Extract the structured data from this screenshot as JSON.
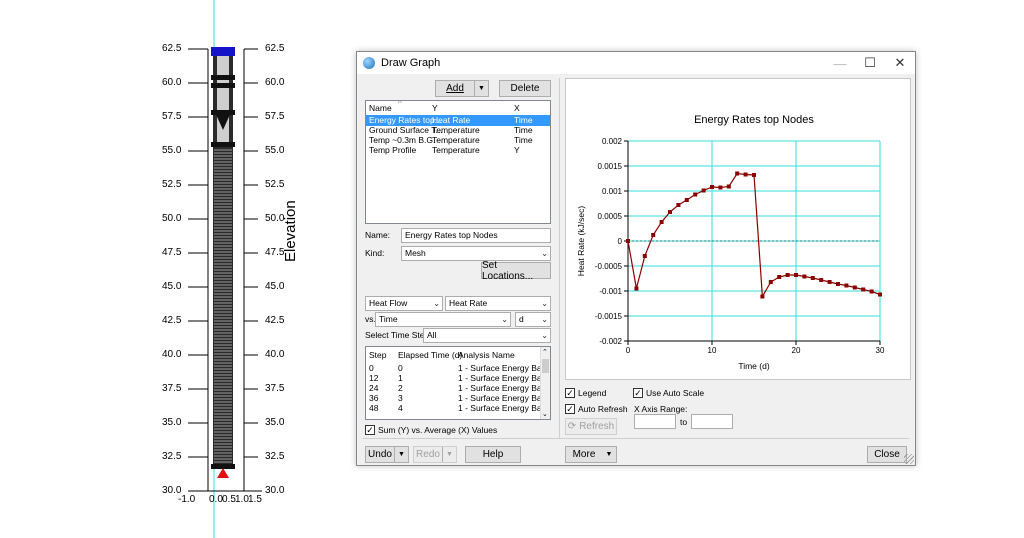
{
  "model_view": {
    "left_ticks": [
      "62.5",
      "60.0",
      "57.5",
      "55.0",
      "52.5",
      "50.0",
      "47.5",
      "45.0",
      "42.5",
      "40.0",
      "37.5",
      "35.0",
      "32.5",
      "30.0"
    ],
    "right_ticks": [
      "62.5",
      "60.0",
      "57.5",
      "55.0",
      "52.5",
      "50.0",
      "47.5",
      "45.0",
      "42.5",
      "40.0",
      "37.5",
      "35.0",
      "32.5",
      "30.0"
    ],
    "x_ticks": [
      "-1.0",
      "0.0",
      "0.5",
      "1.0",
      "1.5"
    ],
    "axis_title": "Elevation"
  },
  "dialog": {
    "title": "Draw Graph",
    "add_label": "Add",
    "delete_label": "Delete",
    "graph_list": {
      "headers": [
        "Name",
        "Y",
        "X"
      ],
      "rows": [
        [
          "Energy Rates top...",
          "Heat Rate",
          "Time"
        ],
        [
          "Ground Surface T...",
          "Temperature",
          "Time"
        ],
        [
          "Temp ~0.3m B.G.",
          "Temperature",
          "Time"
        ],
        [
          "Temp Profile",
          "Temperature",
          "Y"
        ]
      ]
    },
    "name_label": "Name:",
    "name_value": "Energy Rates top Nodes",
    "kind_label": "Kind:",
    "kind_value": "Mesh",
    "set_locations_label": "Set Locations...",
    "y_category": "Heat Flow",
    "y_quantity": "Heat Rate",
    "vs_label": "vs.",
    "x_quantity": "Time",
    "x_unit": "d",
    "time_steps_label": "Select Time Steps:",
    "time_steps_value": "All",
    "steps_table": {
      "headers": [
        "Step",
        "Elapsed Time (d)",
        "Analysis Name"
      ],
      "rows": [
        [
          "0",
          "0",
          "1 - Surface Energy Bala..."
        ],
        [
          "12",
          "1",
          "1 - Surface Energy Bala..."
        ],
        [
          "24",
          "2",
          "1 - Surface Energy Bala..."
        ],
        [
          "36",
          "3",
          "1 - Surface Energy Bala..."
        ],
        [
          "48",
          "4",
          "1 - Surface Energy Bala..."
        ]
      ]
    },
    "sum_label": "Sum (Y) vs. Average (X) Values",
    "legend_label": "Legend",
    "auto_scale_label": "Use Auto Scale",
    "auto_refresh_label": "Auto Refresh",
    "x_axis_range_label": "X Axis Range:",
    "to_label": "to",
    "refresh_label": "Refresh",
    "undo_label": "Undo",
    "redo_label": "Redo",
    "help_label": "Help",
    "more_label": "More",
    "close_label": "Close",
    "checked": {
      "sum": true,
      "legend": true,
      "auto_scale": true,
      "auto_refresh": true
    }
  },
  "chart_data": {
    "type": "line",
    "title": "Energy Rates top Nodes",
    "xlabel": "Time (d)",
    "ylabel": "Heat Rate (kJ/sec)",
    "xlim": [
      0,
      30
    ],
    "ylim": [
      -0.002,
      0.002
    ],
    "x_ticks": [
      "0",
      "10",
      "20",
      "30"
    ],
    "y_ticks": [
      "0.002",
      "0.0015",
      "0.001",
      "0.0005",
      "0",
      "-0.0005",
      "-0.001",
      "-0.0015",
      "-0.002"
    ],
    "grid": true,
    "series_color": "#8b0000",
    "series": [
      {
        "x": [
          0,
          1,
          2,
          3,
          4,
          5,
          6,
          7,
          8,
          9,
          10,
          11,
          12,
          13,
          14,
          15,
          16,
          17,
          18,
          19,
          20,
          21,
          22,
          23,
          24,
          25,
          26,
          27,
          28,
          29,
          30
        ],
        "values": [
          0.0,
          -0.00095,
          -0.0003,
          0.00012,
          0.00038,
          0.00058,
          0.00072,
          0.00082,
          0.00093,
          0.00101,
          0.00108,
          0.00107,
          0.00109,
          0.00135,
          0.00133,
          0.00132,
          -0.00111,
          -0.00082,
          -0.00072,
          -0.00068,
          -0.00068,
          -0.00071,
          -0.00074,
          -0.00078,
          -0.00082,
          -0.00086,
          -0.00089,
          -0.00093,
          -0.00097,
          -0.00101,
          -0.00107
        ]
      }
    ]
  }
}
